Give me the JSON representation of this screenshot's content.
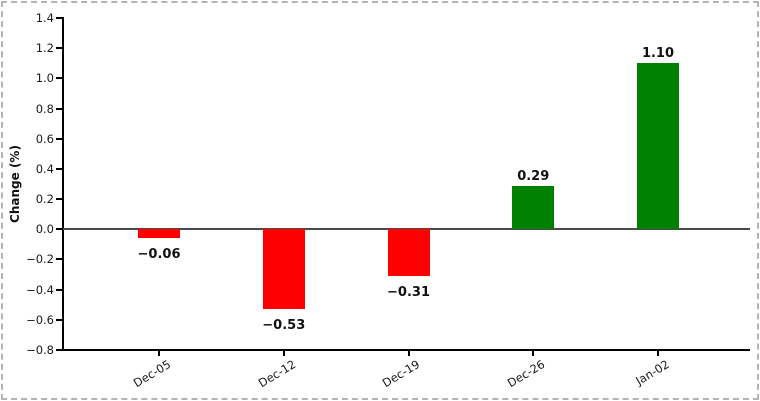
{
  "chart_data": {
    "type": "bar",
    "title": "",
    "xlabel": "",
    "ylabel": "Change (%)",
    "categories": [
      "Dec-05",
      "Dec-12",
      "Dec-19",
      "Dec-26",
      "Jan-02"
    ],
    "values": [
      -0.06,
      -0.53,
      -0.31,
      0.29,
      1.1
    ],
    "bar_labels": [
      "−0.06",
      "−0.53",
      "−0.31",
      "0.29",
      "1.10"
    ],
    "ylim": [
      -0.8,
      1.4
    ],
    "ytick_step": 0.2,
    "yticks": [
      "−0.8",
      "−0.6",
      "−0.4",
      "−0.2",
      "0.0",
      "0.2",
      "0.4",
      "0.6",
      "0.8",
      "1.0",
      "1.2",
      "1.4"
    ],
    "grid": false,
    "legend": null,
    "zero_line": true,
    "negative_color": "#ff0000",
    "positive_color": "#008000",
    "axis_color": "#000000",
    "zero_line_color": "#4a4a4a",
    "frame_border_color": "#b3b3b3"
  }
}
